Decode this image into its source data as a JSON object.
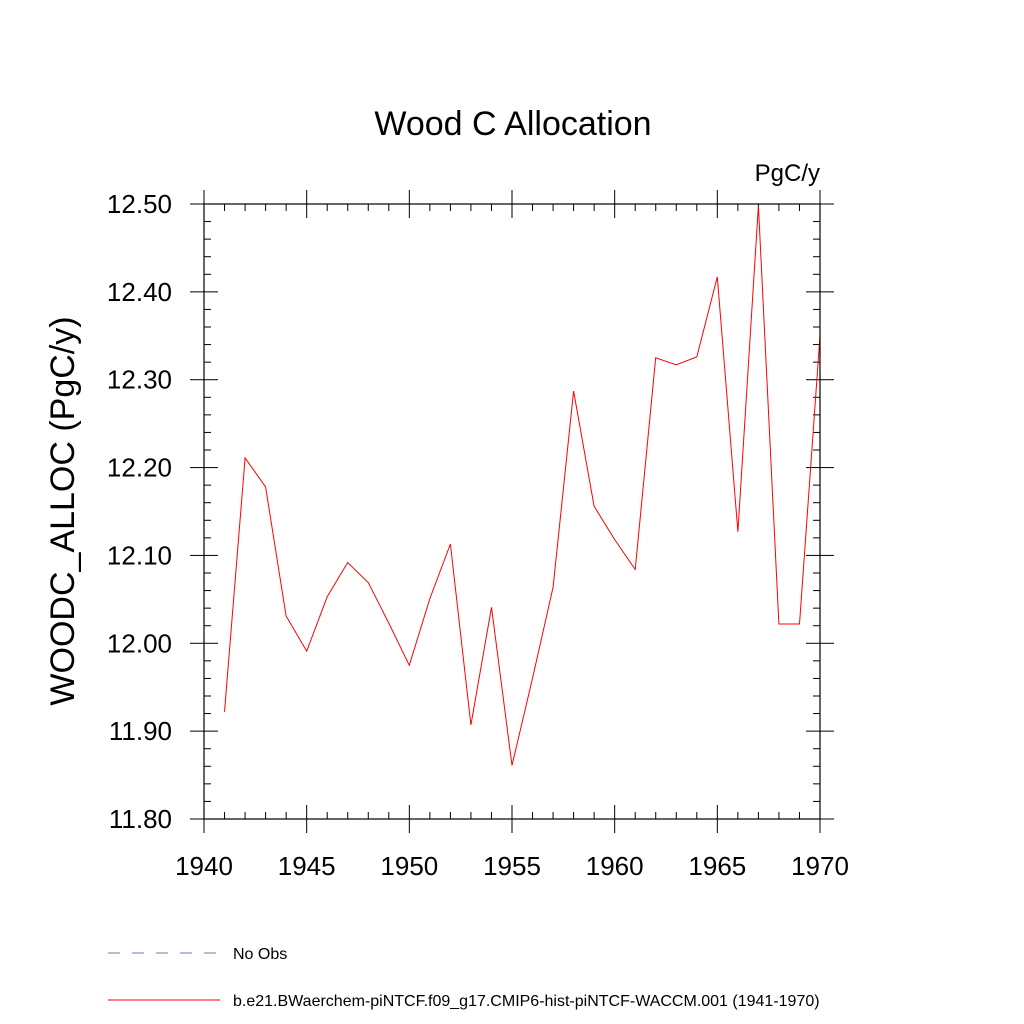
{
  "chart_data": {
    "type": "line",
    "title": "Wood C Allocation",
    "units": "PgC/y",
    "xlabel": "",
    "ylabel": "WOODC_ALLOC  (PgC/y)",
    "xlim": [
      1940,
      1970
    ],
    "ylim": [
      11.8,
      12.5
    ],
    "xticks": [
      1940,
      1945,
      1950,
      1955,
      1960,
      1965,
      1970
    ],
    "xtick_labels": [
      "1940",
      "1945",
      "1950",
      "1955",
      "1960",
      "1965",
      "1970"
    ],
    "yticks": [
      11.8,
      11.9,
      12.0,
      12.1,
      12.2,
      12.3,
      12.4,
      12.5
    ],
    "ytick_labels": [
      "11.80",
      "11.90",
      "12.00",
      "12.10",
      "12.20",
      "12.30",
      "12.40",
      "12.50"
    ],
    "grid": false,
    "legend_position": "bottom",
    "series": [
      {
        "name": "b.e21.BWaerchem-piNTCF.f09_g17.CMIP6-hist-piNTCF-WACCM.001 (1941-1970)",
        "color": "#ff0000",
        "dash": "solid",
        "x": [
          1941,
          1942,
          1943,
          1944,
          1945,
          1946,
          1947,
          1948,
          1949,
          1950,
          1951,
          1952,
          1953,
          1954,
          1955,
          1956,
          1957,
          1958,
          1959,
          1960,
          1961,
          1962,
          1963,
          1964,
          1965,
          1966,
          1967,
          1968,
          1969,
          1970
        ],
        "y": [
          11.922,
          12.211,
          12.178,
          12.031,
          11.991,
          12.053,
          12.092,
          12.069,
          12.023,
          11.975,
          12.051,
          12.113,
          11.907,
          12.041,
          11.861,
          11.96,
          12.064,
          12.287,
          12.156,
          12.118,
          12.084,
          12.325,
          12.317,
          12.326,
          12.417,
          12.127,
          12.498,
          12.022,
          12.022,
          12.35
        ]
      }
    ],
    "legend": [
      {
        "label": "No Obs",
        "color": "#7b6fb5",
        "dash": "dashed"
      },
      {
        "label": "b.e21.BWaerchem-piNTCF.f09_g17.CMIP6-hist-piNTCF-WACCM.001 (1941-1970)",
        "color": "#ff0000",
        "dash": "solid"
      }
    ]
  }
}
